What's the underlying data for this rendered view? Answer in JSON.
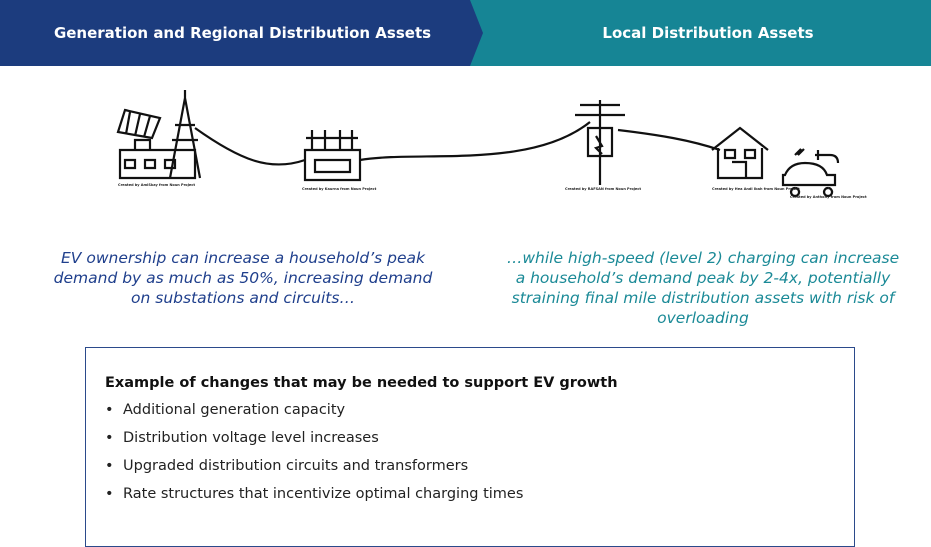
{
  "header": {
    "left": "Generation and Regional Distribution Assets",
    "right": "Local Distribution Assets"
  },
  "icon_credits": [
    "Created by AmiSkay from Noun Project",
    "Created by Kaurna from Noun Project",
    "Created by RAFSAN from Noun Project",
    "Created by Hea Andi Ibah from Noun Project",
    "Created by Anthony from Noun Project"
  ],
  "captions": {
    "left": [
      "EV ownership can increase a household’s peak",
      "demand by as much as 50%, increasing demand",
      "on substations and circuits…"
    ],
    "right": [
      "…while high-speed (level 2) charging can increase",
      "a household’s demand peak by 2-4x, potentially",
      "straining final mile distribution assets with risk of",
      "overloading"
    ]
  },
  "box": {
    "title": "Example of changes that may be needed to support EV growth",
    "items": [
      "Additional generation capacity",
      "Distribution voltage level increases",
      "Upgraded distribution circuits and transformers",
      "Rate structures that incentivize optimal charging times"
    ]
  }
}
